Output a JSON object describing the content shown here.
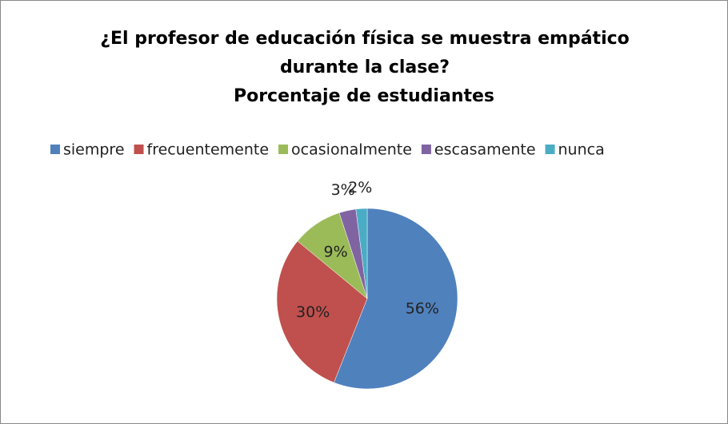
{
  "chart_data": {
    "type": "pie",
    "title": "¿El profesor de educación física se muestra empático durante la clase?",
    "subtitle": "Porcentaje de estudiantes",
    "categories": [
      "siempre",
      "frecuentemente",
      "ocasionalmente",
      "escasamente",
      "nunca"
    ],
    "values": [
      56,
      30,
      9,
      3,
      2
    ],
    "value_labels": [
      "56%",
      "30%",
      "9%",
      "3%",
      "2%"
    ],
    "colors": [
      "#4f81bd",
      "#c0504d",
      "#9bbb59",
      "#8064a2",
      "#4bacc6"
    ],
    "legend": "top"
  }
}
